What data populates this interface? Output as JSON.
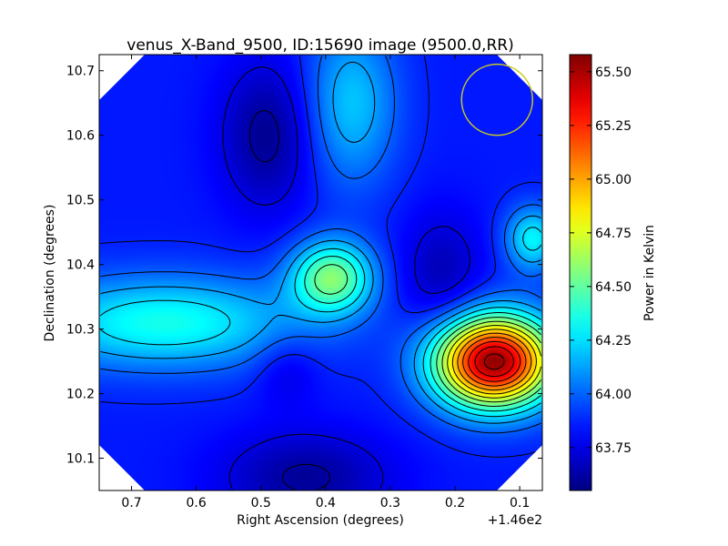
{
  "chart_data": {
    "type": "heatmap",
    "title": "venus_X-Band_9500, ID:15690 image (9500.0,RR)",
    "xlabel": "Right Ascension (degrees)",
    "ylabel": "Declination (degrees)",
    "x_offset_label": "+1.46e2",
    "xlim": [
      0.75,
      0.065
    ],
    "ylim": [
      10.05,
      10.725
    ],
    "x_ticks": [
      0.7,
      0.6,
      0.5,
      0.4,
      0.3,
      0.2,
      0.1
    ],
    "x_tick_labels": [
      "0.7",
      "0.6",
      "0.5",
      "0.4",
      "0.3",
      "0.2",
      "0.1"
    ],
    "y_ticks": [
      10.1,
      10.2,
      10.3,
      10.4,
      10.5,
      10.6,
      10.7
    ],
    "y_tick_labels": [
      "10.1",
      "10.2",
      "10.3",
      "10.4",
      "10.5",
      "10.6",
      "10.7"
    ],
    "colorbar": {
      "label": "Power in Kelvin",
      "vmin": 63.55,
      "vmax": 65.58,
      "colormap": "jet",
      "ticks": [
        63.75,
        64.0,
        64.25,
        64.5,
        64.75,
        65.0,
        65.25,
        65.5
      ],
      "tick_labels": [
        "63.75",
        "64.00",
        "64.25",
        "64.50",
        "64.75",
        "65.00",
        "65.25",
        "65.50"
      ]
    },
    "background_level": 63.85,
    "features": [
      {
        "kind": "peak",
        "ra": 0.14,
        "dec": 10.25,
        "value": 65.55
      },
      {
        "kind": "peak",
        "ra": 0.39,
        "dec": 10.38,
        "value": 64.55
      },
      {
        "kind": "peak",
        "ra": 0.08,
        "dec": 10.44,
        "value": 64.3
      },
      {
        "kind": "ridge",
        "ra": 0.65,
        "dec": 10.31,
        "value": 64.35
      },
      {
        "kind": "valley",
        "ra": 0.49,
        "dec": 10.6,
        "value": 63.58
      },
      {
        "kind": "valley",
        "ra": 0.22,
        "dec": 10.38,
        "value": 63.65
      },
      {
        "kind": "valley",
        "ra": 0.43,
        "dec": 10.07,
        "value": 63.6
      },
      {
        "kind": "valley",
        "ra": 0.46,
        "dec": 10.24,
        "value": 63.72
      }
    ],
    "contour_count": 16,
    "beam_circle": {
      "ra": 0.135,
      "dec": 10.655,
      "color": "#c8c820"
    }
  }
}
